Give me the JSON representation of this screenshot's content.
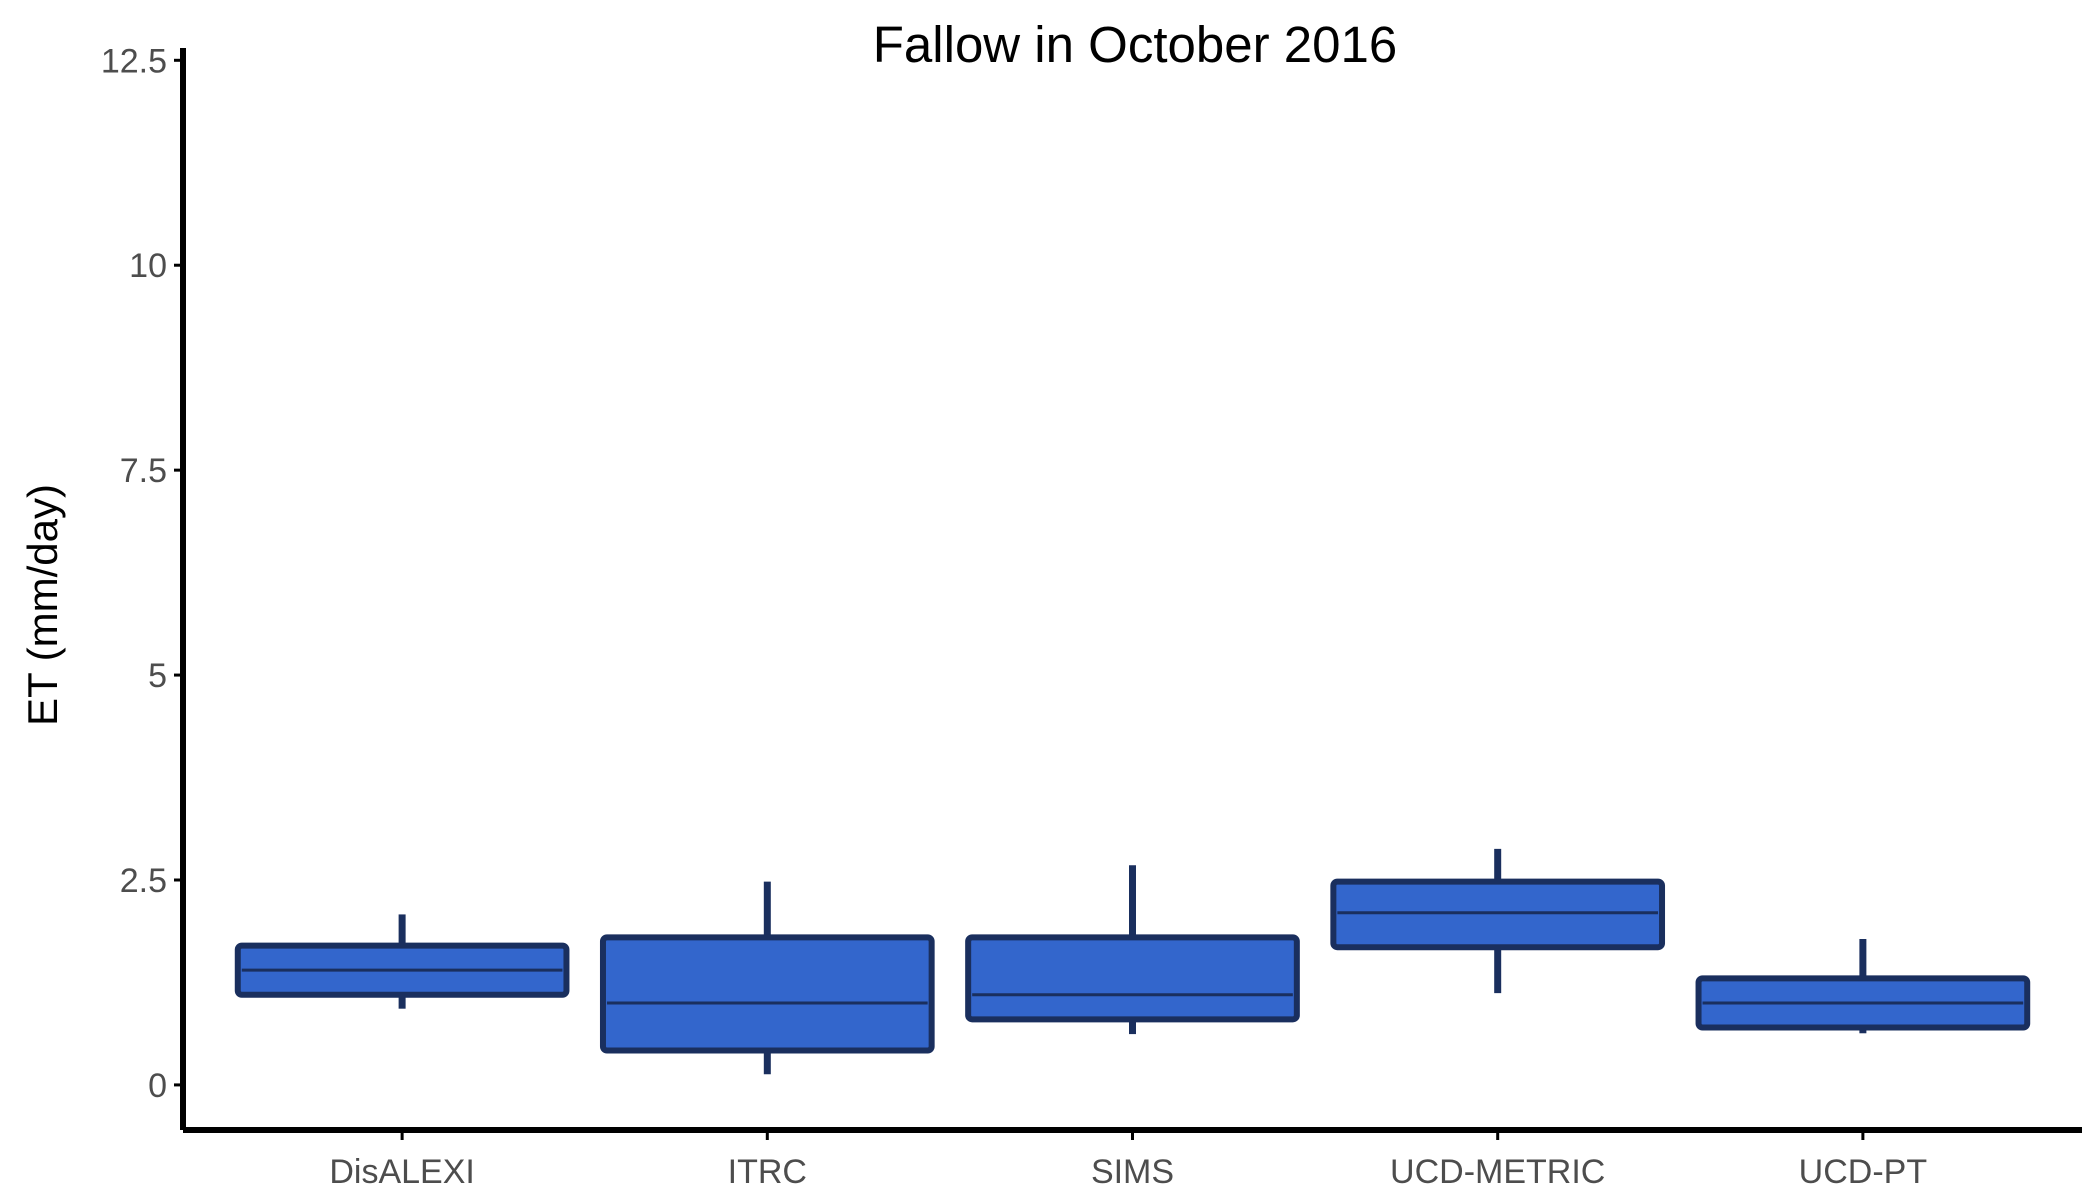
{
  "chart_data": {
    "type": "boxplot",
    "title": "Fallow in October 2016",
    "xlabel": "",
    "ylabel": "ET (mm/day)",
    "ylim": [
      -0.55,
      12.65
    ],
    "yticks": [
      0,
      2.5,
      5,
      7.5,
      10,
      12.5
    ],
    "ytick_labels": [
      "0",
      "2.5",
      "5",
      "7.5",
      "10",
      "12.5"
    ],
    "categories": [
      "DisALEXI",
      "ITRC",
      "SIMS",
      "UCD-METRIC",
      "UCD-PT"
    ],
    "series": [
      {
        "boxes": [
          {
            "category": "DisALEXI",
            "min": 0.93,
            "q1": 1.1,
            "median": 1.4,
            "q3": 1.7,
            "max": 2.08
          },
          {
            "category": "ITRC",
            "min": 0.13,
            "q1": 0.42,
            "median": 1.0,
            "q3": 1.8,
            "max": 2.48
          },
          {
            "category": "SIMS",
            "min": 0.62,
            "q1": 0.8,
            "median": 1.1,
            "q3": 1.8,
            "max": 2.68
          },
          {
            "category": "UCD-METRIC",
            "min": 1.12,
            "q1": 1.68,
            "median": 2.1,
            "q3": 2.48,
            "max": 2.88
          },
          {
            "category": "UCD-PT",
            "min": 0.63,
            "q1": 0.7,
            "median": 1.0,
            "q3": 1.3,
            "max": 1.78
          }
        ]
      }
    ],
    "grid": false,
    "legend": "none",
    "colors": {
      "box_fill": "#3366cc",
      "box_stroke": "#1a2f5e",
      "axis": "#000000",
      "tick_text": "#4d4d4d"
    }
  }
}
